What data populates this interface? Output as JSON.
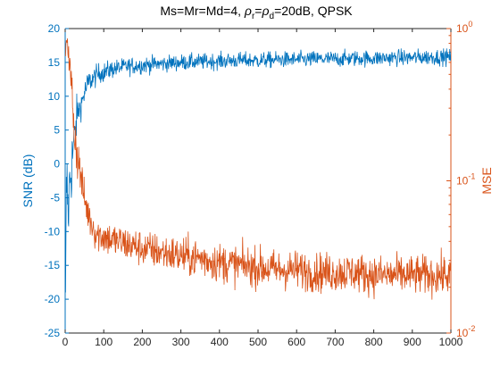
{
  "window": {
    "background": "#ffffff"
  },
  "chart_data": {
    "type": "line",
    "title": {
      "prefix": "Ms=Mr=Md=4, ",
      "rho": "ρ",
      "sub_r": "r",
      "equals": "=",
      "sub_d": "d",
      "suffix": "=20dB, QPSK"
    },
    "x_axis": {
      "xlabel": "",
      "xlim": [
        0,
        1000
      ],
      "ticks": [
        0,
        100,
        200,
        300,
        400,
        500,
        600,
        700,
        800,
        900,
        1000
      ],
      "tick_labels": [
        "0",
        "100",
        "200",
        "300",
        "400",
        "500",
        "600",
        "700",
        "800",
        "900",
        "1000"
      ]
    },
    "left_axis": {
      "ylabel": "SNR (dB)",
      "ylim": [
        -25,
        20
      ],
      "ticks": [
        -25,
        -20,
        -15,
        -10,
        -5,
        0,
        5,
        10,
        15,
        20
      ],
      "tick_labels": [
        "-25",
        "-20",
        "-15",
        "-10",
        "-5",
        "0",
        "5",
        "10",
        "15",
        "20"
      ],
      "color": "#0072BD"
    },
    "right_axis": {
      "ylabel": "MSE",
      "scale": "log",
      "ylim": [
        0.01,
        1
      ],
      "ticks": [
        {
          "value": 0.01,
          "base": "10",
          "exp": "-2"
        },
        {
          "value": 0.1,
          "base": "10",
          "exp": "-1"
        },
        {
          "value": 1,
          "base": "10",
          "exp": "0"
        }
      ],
      "color": "#D95319"
    },
    "grid": false,
    "legend": "none",
    "series": [
      {
        "axis": "left",
        "color": "#0072BD",
        "x": [
          1,
          3,
          5,
          8,
          12,
          16,
          20,
          25,
          30,
          35,
          40,
          45,
          50,
          60,
          70,
          80,
          90,
          100,
          120,
          140,
          160,
          180,
          200,
          250,
          300,
          350,
          400,
          450,
          500,
          550,
          600,
          650,
          700,
          750,
          800,
          850,
          900,
          950,
          1000
        ],
        "values": [
          -20,
          -4,
          -3,
          -8,
          -2,
          -1,
          2,
          4,
          7,
          8,
          8.5,
          9.5,
          10.5,
          12,
          12.5,
          13,
          13.5,
          13.5,
          14,
          14.2,
          14.4,
          14.5,
          14.6,
          14.8,
          15,
          15.1,
          15.2,
          15.3,
          15.3,
          15.4,
          15.4,
          15.5,
          15.5,
          15.6,
          15.6,
          15.7,
          15.7,
          15.8,
          15.8
        ],
        "noise_amp": [
          2,
          4,
          5,
          5,
          5,
          5,
          5,
          4,
          3,
          2,
          2,
          2,
          2,
          1.8,
          1.6,
          1.6,
          1.5,
          1.5,
          1.4,
          1.3,
          1.3,
          1.3,
          1.3,
          1.2,
          1.2,
          1.2,
          1.2,
          1.2,
          1.2,
          1.2,
          1.2,
          1.2,
          1.2,
          1.2,
          1.2,
          1.2,
          1.2,
          1.2,
          1.2
        ]
      },
      {
        "axis": "right",
        "color": "#D95319",
        "x": [
          1,
          3,
          6,
          10,
          15,
          20,
          25,
          30,
          35,
          40,
          45,
          50,
          60,
          70,
          80,
          100,
          120,
          150,
          200,
          250,
          300,
          350,
          400,
          450,
          500,
          550,
          600,
          650,
          700,
          750,
          800,
          850,
          900,
          950,
          1000
        ],
        "values": [
          0.6,
          0.9,
          0.85,
          0.6,
          0.45,
          0.3,
          0.2,
          0.16,
          0.13,
          0.11,
          0.09,
          0.075,
          0.06,
          0.052,
          0.045,
          0.043,
          0.041,
          0.039,
          0.036,
          0.034,
          0.032,
          0.031,
          0.029,
          0.028,
          0.027,
          0.026,
          0.026,
          0.025,
          0.025,
          0.025,
          0.024,
          0.024,
          0.024,
          0.024,
          0.024
        ],
        "noise_amp": [
          0.05,
          0.07,
          0.07,
          0.1,
          0.15,
          0.2,
          0.2,
          0.18,
          0.16,
          0.14,
          0.13,
          0.12,
          0.12,
          0.12,
          0.12,
          0.12,
          0.12,
          0.12,
          0.12,
          0.12,
          0.13,
          0.13,
          0.13,
          0.13,
          0.13,
          0.13,
          0.13,
          0.13,
          0.13,
          0.13,
          0.13,
          0.13,
          0.13,
          0.13,
          0.13
        ]
      }
    ]
  }
}
